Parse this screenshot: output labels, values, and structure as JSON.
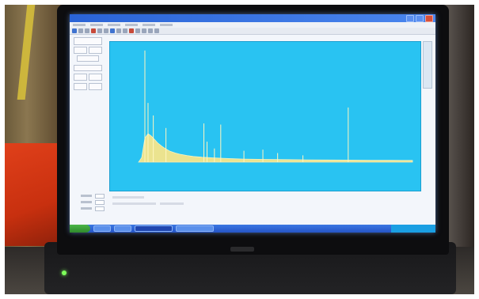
{
  "scene": {
    "description_colors": {
      "plot_background": "#29c3f2",
      "spectrum_fill": "#f6e58a",
      "spectrum_line": "#fff6c0",
      "axis_text": "#0b5f8a",
      "taskbar": "#2554c7",
      "status_led": "#7dff5a"
    }
  },
  "chart_data": {
    "type": "area",
    "title": "",
    "xlabel": "",
    "ylabel": "",
    "xlim": [
      0,
      2600
    ],
    "ylim": [
      0,
      1000
    ],
    "grid": false,
    "series": [
      {
        "x": [
          0,
          30,
          60,
          90,
          120,
          150,
          180,
          220,
          260,
          300,
          350,
          400,
          460,
          520,
          600,
          700,
          800,
          900,
          1000,
          1200,
          1400,
          1600,
          1800,
          2000,
          2200,
          2400,
          2600
        ],
        "values": [
          0,
          40,
          210,
          250,
          230,
          200,
          170,
          140,
          115,
          95,
          80,
          68,
          58,
          50,
          44,
          38,
          34,
          30,
          27,
          24,
          22,
          20,
          19,
          18,
          17,
          16,
          15
        ]
      }
    ],
    "peaks": [
      {
        "x": 60,
        "value": 980
      },
      {
        "x": 90,
        "value": 520
      },
      {
        "x": 140,
        "value": 410
      },
      {
        "x": 260,
        "value": 300
      },
      {
        "x": 620,
        "value": 340
      },
      {
        "x": 650,
        "value": 180
      },
      {
        "x": 720,
        "value": 120
      },
      {
        "x": 780,
        "value": 330
      },
      {
        "x": 1000,
        "value": 100
      },
      {
        "x": 1180,
        "value": 110
      },
      {
        "x": 1320,
        "value": 80
      },
      {
        "x": 1560,
        "value": 60
      },
      {
        "x": 1990,
        "value": 480
      }
    ]
  }
}
